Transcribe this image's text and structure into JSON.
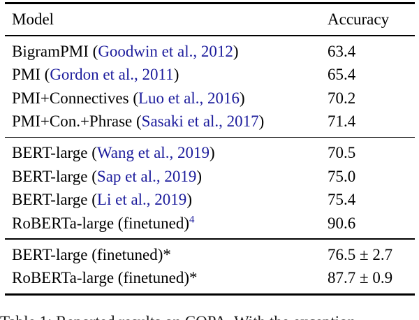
{
  "colors": {
    "citation_link": "#1c1c9c",
    "text": "#000000",
    "background": "#ffffff"
  },
  "table": {
    "columns": [
      "Model",
      "Accuracy"
    ],
    "groups": [
      {
        "rows": [
          {
            "model_prefix": "BigramPMI (",
            "citation": "Goodwin et al., 2012",
            "model_suffix": ")",
            "superscript": "",
            "accuracy": "63.4"
          },
          {
            "model_prefix": "PMI (",
            "citation": "Gordon et al., 2011",
            "model_suffix": ")",
            "superscript": "",
            "accuracy": "65.4"
          },
          {
            "model_prefix": "PMI+Connectives (",
            "citation": "Luo et al., 2016",
            "model_suffix": ")",
            "superscript": "",
            "accuracy": "70.2"
          },
          {
            "model_prefix": "PMI+Con.+Phrase (",
            "citation": "Sasaki et al., 2017",
            "model_suffix": ")",
            "superscript": "",
            "accuracy": "71.4"
          }
        ]
      },
      {
        "rows": [
          {
            "model_prefix": "BERT-large (",
            "citation": "Wang et al., 2019",
            "model_suffix": ")",
            "superscript": "",
            "accuracy": "70.5"
          },
          {
            "model_prefix": "BERT-large (",
            "citation": "Sap et al., 2019",
            "model_suffix": ")",
            "superscript": "",
            "accuracy": "75.0"
          },
          {
            "model_prefix": "BERT-large (",
            "citation": "Li et al., 2019",
            "model_suffix": ")",
            "superscript": "",
            "accuracy": "75.4"
          },
          {
            "model_prefix": "RoBERTa-large (finetuned)",
            "citation": "",
            "model_suffix": "",
            "superscript": "4",
            "accuracy": "90.6"
          }
        ]
      },
      {
        "rows": [
          {
            "model_prefix": "BERT-large (finetuned)*",
            "citation": "",
            "model_suffix": "",
            "superscript": "",
            "accuracy": "76.5 ± 2.7"
          },
          {
            "model_prefix": "RoBERTa-large (finetuned)*",
            "citation": "",
            "model_suffix": "",
            "superscript": "",
            "accuracy": "87.7 ± 0.9"
          }
        ]
      }
    ]
  },
  "caption": "Table 1: Reported results on COPA. With the exception"
}
